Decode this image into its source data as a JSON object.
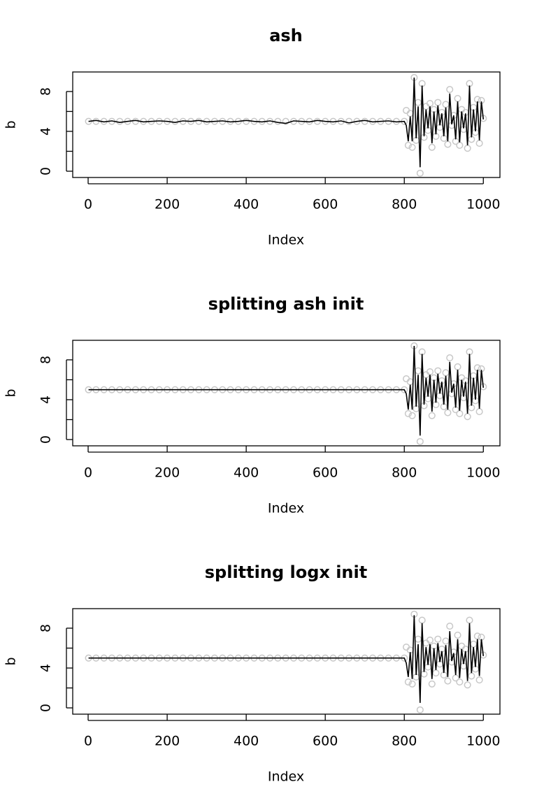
{
  "chart_data": [
    {
      "type": "line",
      "title": "ash",
      "xlabel": "Index",
      "ylabel": "b",
      "x": [
        1,
        20,
        40,
        60,
        80,
        100,
        120,
        140,
        160,
        180,
        200,
        220,
        240,
        260,
        280,
        300,
        320,
        340,
        360,
        380,
        400,
        420,
        440,
        460,
        480,
        500,
        520,
        540,
        560,
        580,
        600,
        620,
        640,
        660,
        680,
        700,
        720,
        740,
        760,
        780,
        800,
        805,
        810,
        815,
        820,
        825,
        830,
        835,
        840,
        845,
        850,
        855,
        860,
        865,
        870,
        875,
        880,
        885,
        890,
        895,
        900,
        905,
        910,
        915,
        920,
        925,
        930,
        935,
        940,
        945,
        950,
        955,
        960,
        965,
        970,
        975,
        980,
        985,
        990,
        995,
        1000
      ],
      "series": [
        {
          "color": "#c8c8c8",
          "marker": "circle",
          "values": [
            5,
            5,
            5,
            5,
            5,
            5,
            5,
            5,
            5,
            5,
            5,
            5,
            5,
            5,
            5,
            5,
            5,
            5,
            5,
            5,
            5,
            5,
            5,
            5,
            5,
            5,
            5,
            5,
            5,
            5,
            5,
            5,
            5,
            5,
            5,
            5,
            5,
            5,
            5,
            5,
            5,
            6.1,
            2.6,
            5.8,
            2.4,
            9.4,
            3.1,
            6.9,
            -0.2,
            8.8,
            3.4,
            6.5,
            4.1,
            6.8,
            2.4,
            6.2,
            3.5,
            6.9,
            4.4,
            5.9,
            3.3,
            6.7,
            2.7,
            8.2,
            4.6,
            5.6,
            3.0,
            7.3,
            2.6,
            6.2,
            4.2,
            5.9,
            2.3,
            8.8,
            3.2,
            6.4,
            3.9,
            7.2,
            2.8,
            7.1,
            5.3
          ]
        },
        {
          "color": "#000000",
          "values": [
            5,
            5.1,
            4.95,
            5.05,
            4.9,
            5,
            5.1,
            4.95,
            5,
            5.05,
            5,
            4.9,
            5.05,
            5,
            5.1,
            4.95,
            5,
            5.05,
            4.95,
            5,
            5.1,
            5,
            4.95,
            5.05,
            4.9,
            4.8,
            5.05,
            5,
            4.95,
            5.1,
            5,
            4.95,
            5.05,
            4.85,
            5,
            5.1,
            4.95,
            5,
            5.05,
            4.95,
            5,
            4.6,
            3.0,
            5.5,
            3.0,
            9.4,
            3.3,
            6.5,
            0.4,
            8.6,
            3.5,
            6.2,
            4.3,
            6.5,
            2.8,
            6.0,
            3.7,
            6.6,
            4.6,
            5.8,
            3.5,
            6.4,
            3.0,
            7.8,
            4.7,
            5.6,
            3.2,
            7.0,
            2.9,
            6.0,
            4.3,
            5.8,
            2.6,
            8.6,
            3.4,
            6.2,
            4.0,
            7.0,
            3.1,
            7.0,
            5.2
          ]
        }
      ],
      "xlim": [
        -39,
        1042
      ],
      "ylim": [
        -0.63,
        9.96
      ],
      "xticks": [
        0,
        200,
        400,
        600,
        800,
        1000
      ],
      "yticks": [
        0,
        {
          "value": 2,
          "label": null
        },
        4,
        {
          "value": 6,
          "label": null
        },
        8
      ]
    },
    {
      "type": "line",
      "title": "splitting ash init",
      "xlabel": "Index",
      "ylabel": "b",
      "x": [
        1,
        20,
        40,
        60,
        80,
        100,
        120,
        140,
        160,
        180,
        200,
        220,
        240,
        260,
        280,
        300,
        320,
        340,
        360,
        380,
        400,
        420,
        440,
        460,
        480,
        500,
        520,
        540,
        560,
        580,
        600,
        620,
        640,
        660,
        680,
        700,
        720,
        740,
        760,
        780,
        800,
        805,
        810,
        815,
        820,
        825,
        830,
        835,
        840,
        845,
        850,
        855,
        860,
        865,
        870,
        875,
        880,
        885,
        890,
        895,
        900,
        905,
        910,
        915,
        920,
        925,
        930,
        935,
        940,
        945,
        950,
        955,
        960,
        965,
        970,
        975,
        980,
        985,
        990,
        995,
        1000
      ],
      "series": [
        {
          "color": "#c8c8c8",
          "marker": "circle",
          "values": [
            5,
            5,
            5,
            5,
            5,
            5,
            5,
            5,
            5,
            5,
            5,
            5,
            5,
            5,
            5,
            5,
            5,
            5,
            5,
            5,
            5,
            5,
            5,
            5,
            5,
            5,
            5,
            5,
            5,
            5,
            5,
            5,
            5,
            5,
            5,
            5,
            5,
            5,
            5,
            5,
            5,
            6.1,
            2.6,
            5.8,
            2.4,
            9.4,
            3.1,
            6.9,
            -0.2,
            8.8,
            3.4,
            6.5,
            4.1,
            6.8,
            2.4,
            6.2,
            3.5,
            6.9,
            4.4,
            5.9,
            3.3,
            6.7,
            2.7,
            8.2,
            4.6,
            5.6,
            3.0,
            7.3,
            2.6,
            6.2,
            4.2,
            5.9,
            2.3,
            8.8,
            3.2,
            6.4,
            3.9,
            7.2,
            2.8,
            7.1,
            5.3
          ]
        },
        {
          "color": "#000000",
          "values": [
            5,
            5,
            5,
            5,
            5,
            5,
            5,
            5,
            5,
            5,
            5,
            5,
            5,
            5,
            5,
            5,
            5,
            5,
            5,
            5,
            5,
            5,
            5,
            5,
            5,
            5,
            5,
            5,
            5,
            5,
            5,
            5,
            5,
            5,
            5,
            5,
            5,
            5,
            5,
            5,
            5,
            4.6,
            3.0,
            5.5,
            3.0,
            9.4,
            3.3,
            6.5,
            0.4,
            8.6,
            3.5,
            6.2,
            4.3,
            6.5,
            2.8,
            6.0,
            3.7,
            6.6,
            4.6,
            5.8,
            3.5,
            6.4,
            3.0,
            7.8,
            4.7,
            5.6,
            3.2,
            7.0,
            2.9,
            6.0,
            4.3,
            5.8,
            2.6,
            8.6,
            3.4,
            6.2,
            4.0,
            7.0,
            3.1,
            7.0,
            5.2
          ]
        }
      ],
      "xlim": [
        -39,
        1042
      ],
      "ylim": [
        -0.63,
        9.96
      ],
      "xticks": [
        0,
        200,
        400,
        600,
        800,
        1000
      ],
      "yticks": [
        0,
        {
          "value": 2,
          "label": null
        },
        4,
        {
          "value": 6,
          "label": null
        },
        8
      ]
    },
    {
      "type": "line",
      "title": "splitting logx init",
      "xlabel": "Index",
      "ylabel": "b",
      "x": [
        1,
        20,
        40,
        60,
        80,
        100,
        120,
        140,
        160,
        180,
        200,
        220,
        240,
        260,
        280,
        300,
        320,
        340,
        360,
        380,
        400,
        420,
        440,
        460,
        480,
        500,
        520,
        540,
        560,
        580,
        600,
        620,
        640,
        660,
        680,
        700,
        720,
        740,
        760,
        780,
        800,
        805,
        810,
        815,
        820,
        825,
        830,
        835,
        840,
        845,
        850,
        855,
        860,
        865,
        870,
        875,
        880,
        885,
        890,
        895,
        900,
        905,
        910,
        915,
        920,
        925,
        930,
        935,
        940,
        945,
        950,
        955,
        960,
        965,
        970,
        975,
        980,
        985,
        990,
        995,
        1000
      ],
      "series": [
        {
          "color": "#c8c8c8",
          "marker": "circle",
          "values": [
            5,
            5,
            5,
            5,
            5,
            5,
            5,
            5,
            5,
            5,
            5,
            5,
            5,
            5,
            5,
            5,
            5,
            5,
            5,
            5,
            5,
            5,
            5,
            5,
            5,
            5,
            5,
            5,
            5,
            5,
            5,
            5,
            5,
            5,
            5,
            5,
            5,
            5,
            5,
            5,
            5,
            6.1,
            2.6,
            5.8,
            2.4,
            9.4,
            3.1,
            6.9,
            -0.2,
            8.8,
            3.4,
            6.5,
            4.1,
            6.8,
            2.4,
            6.2,
            3.5,
            6.9,
            4.4,
            5.9,
            3.3,
            6.7,
            2.7,
            8.2,
            4.6,
            5.6,
            3.0,
            7.3,
            2.6,
            6.2,
            4.2,
            5.9,
            2.3,
            8.8,
            3.2,
            6.4,
            3.9,
            7.2,
            2.8,
            7.1,
            5.3
          ]
        },
        {
          "color": "#000000",
          "values": [
            5,
            5,
            5,
            5,
            5,
            5,
            5,
            5,
            5,
            5,
            5,
            5,
            5,
            5,
            5,
            5,
            5,
            5,
            5,
            5,
            5,
            5,
            5,
            5,
            5,
            5,
            5,
            5,
            5,
            5,
            5,
            5,
            5,
            5,
            5,
            5,
            5,
            5,
            5,
            5,
            5,
            4.5,
            3.1,
            5.6,
            2.9,
            9.3,
            3.3,
            6.4,
            0.5,
            8.5,
            3.6,
            6.1,
            4.3,
            6.4,
            2.9,
            6.0,
            3.8,
            6.5,
            4.6,
            5.7,
            3.5,
            6.3,
            3.1,
            7.7,
            4.7,
            5.5,
            3.3,
            6.9,
            3.0,
            5.9,
            4.4,
            5.7,
            2.7,
            8.5,
            3.5,
            6.1,
            4.1,
            6.9,
            3.2,
            6.9,
            5.2
          ]
        }
      ],
      "xlim": [
        -39,
        1042
      ],
      "ylim": [
        -0.63,
        9.96
      ],
      "xticks": [
        0,
        200,
        400,
        600,
        800,
        1000
      ],
      "yticks": [
        0,
        {
          "value": 2,
          "label": null
        },
        4,
        {
          "value": 6,
          "label": null
        },
        8
      ]
    }
  ]
}
